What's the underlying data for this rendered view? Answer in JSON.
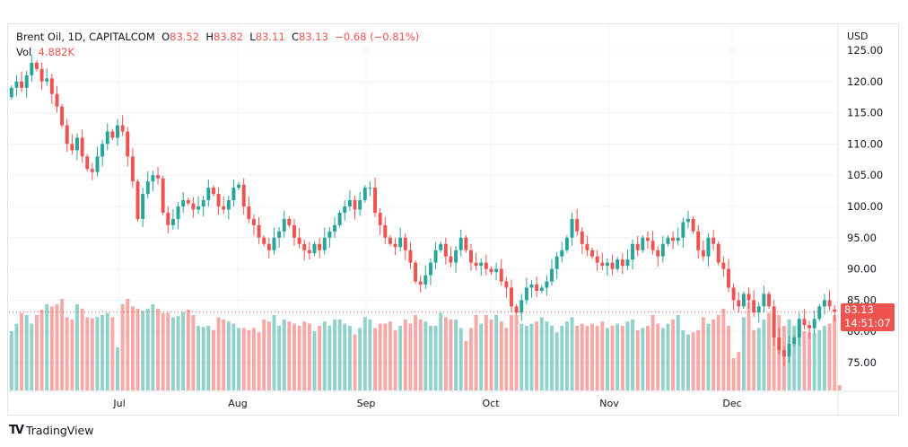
{
  "legend": {
    "symbol": "Brent Oil, 1D, CAPITALCOM",
    "o_label": "O",
    "o": "83.52",
    "h_label": "H",
    "h": "83.82",
    "l_label": "L",
    "l": "83.11",
    "c_label": "C",
    "c": "83.13",
    "change": "−0.68 (−0.81%)",
    "vol_label": "Vol",
    "vol": "4.882K"
  },
  "currency": "USD",
  "price_badge": {
    "price": "83.13",
    "countdown": "14:51:07"
  },
  "footer": {
    "brand": "TradingView",
    "logo_text": "TV"
  },
  "colors": {
    "up": "#26a69a",
    "down": "#ef5350",
    "grid": "#f0f3fa",
    "text": "#131722"
  },
  "chart_data": {
    "type": "candlestick",
    "title": "Brent Oil, 1D, CAPITALCOM",
    "ylabel": "USD",
    "ylim": [
      70,
      127
    ],
    "y_ticks": [
      "125.00",
      "120.00",
      "115.00",
      "110.00",
      "105.00",
      "100.00",
      "95.00",
      "90.00",
      "85.00",
      "80.00",
      "75.00"
    ],
    "x_ticks": [
      "Jul",
      "Aug",
      "Sep",
      "Oct",
      "Nov",
      "Dec"
    ],
    "last_price": 83.13,
    "last_open": 83.52,
    "first_open": 117.5,
    "closes": [
      119,
      120,
      119,
      121,
      123,
      122,
      120,
      120.5,
      118,
      116,
      113,
      110,
      109,
      111,
      108,
      106,
      105.5,
      108,
      110,
      112,
      111,
      113,
      112,
      108,
      104,
      98,
      102,
      104,
      105,
      104.5,
      99,
      97,
      98,
      100,
      101,
      100.5,
      99.5,
      100,
      101,
      103,
      102,
      100,
      99.5,
      101,
      103,
      103.5,
      100,
      98,
      97,
      95,
      94,
      93,
      95,
      96,
      98,
      97,
      95,
      94,
      93,
      92.5,
      94,
      93,
      95,
      96,
      97,
      99,
      100,
      101,
      99.5,
      101,
      103,
      103,
      99,
      97,
      95,
      94,
      93.5,
      95,
      93,
      91,
      88,
      87.5,
      89,
      91,
      93,
      94,
      92,
      91,
      93,
      95,
      93,
      91,
      90.5,
      91,
      90,
      89.5,
      90,
      88,
      87,
      84,
      83,
      85,
      87,
      87.5,
      86.5,
      87,
      88,
      90,
      92,
      93,
      95,
      98,
      96,
      94,
      93,
      92,
      91,
      90.5,
      91,
      90,
      91.5,
      90.5,
      91.5,
      94,
      93,
      95,
      94.5,
      93,
      92,
      94,
      95,
      94.5,
      95,
      97.5,
      98,
      96,
      93,
      92,
      95,
      94,
      91,
      90,
      87,
      85,
      84,
      86,
      85,
      83,
      84,
      86,
      84,
      79,
      77,
      76,
      78,
      79,
      82,
      81,
      80.5,
      82,
      84,
      85,
      84,
      83.13
    ],
    "volumes": [
      55,
      62,
      72,
      70,
      62,
      70,
      75,
      80,
      78,
      80,
      85,
      68,
      66,
      80,
      76,
      68,
      67,
      68,
      70,
      72,
      68,
      40,
      80,
      85,
      78,
      76,
      74,
      76,
      80,
      76,
      72,
      72,
      68,
      69,
      73,
      75,
      70,
      60,
      59,
      60,
      56,
      68,
      66,
      64,
      62,
      58,
      58,
      56,
      58,
      54,
      66,
      64,
      70,
      60,
      66,
      64,
      62,
      60,
      64,
      62,
      55,
      60,
      64,
      60,
      66,
      66,
      62,
      60,
      52,
      58,
      68,
      66,
      58,
      62,
      62,
      64,
      56,
      60,
      66,
      62,
      70,
      66,
      64,
      60,
      60,
      72,
      68,
      66,
      66,
      58,
      46,
      58,
      70,
      62,
      70,
      66,
      70,
      64,
      58,
      70,
      70,
      62,
      60,
      62,
      64,
      68,
      64,
      60,
      54,
      60,
      64,
      68,
      60,
      62,
      60,
      62,
      60,
      64,
      58,
      60,
      62,
      60,
      64,
      66,
      56,
      58,
      60,
      70,
      62,
      58,
      62,
      66,
      70,
      56,
      52,
      54,
      56,
      68,
      62,
      66,
      70,
      76,
      60,
      30,
      36,
      68,
      82,
      56,
      58,
      66,
      72,
      71,
      70,
      60,
      66,
      60,
      66,
      55,
      54,
      53,
      56,
      60,
      62,
      70,
      4.882
    ]
  }
}
